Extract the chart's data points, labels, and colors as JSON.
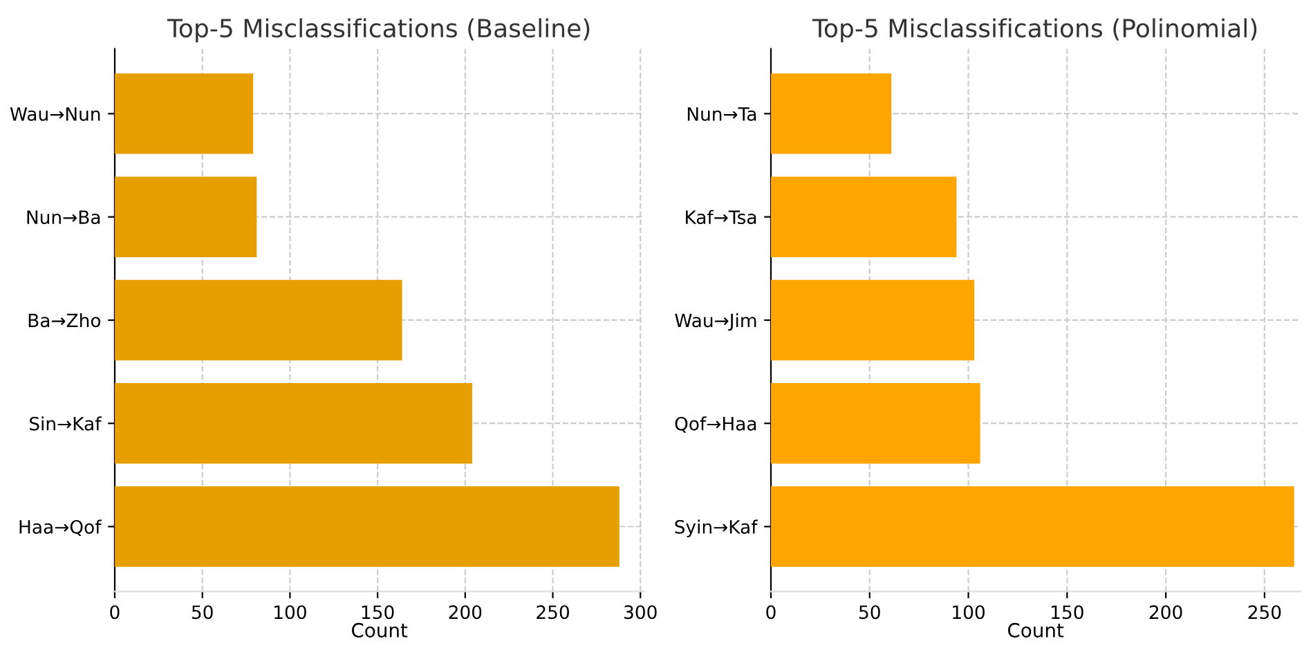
{
  "chart_data": [
    {
      "type": "bar",
      "orientation": "horizontal",
      "title": "Top-5 Misclassifications (Baseline)",
      "xlabel": "Count",
      "categories": [
        "Wau→Nun",
        "Nun→Ba",
        "Ba→Zho",
        "Sin→Kaf",
        "Haa→Qof"
      ],
      "values": [
        79,
        81,
        164,
        204,
        288
      ],
      "color": "#e69f00",
      "xlim": [
        0,
        302
      ],
      "xticks": [
        0,
        50,
        100,
        150,
        200,
        250,
        300
      ],
      "grid": true
    },
    {
      "type": "bar",
      "orientation": "horizontal",
      "title": "Top-5 Misclassifications (Polinomial)",
      "xlabel": "Count",
      "categories": [
        "Nun→Ta",
        "Kaf→Tsa",
        "Wau→Jim",
        "Qof→Haa",
        "Syin→Kaf"
      ],
      "values": [
        61,
        94,
        103,
        106,
        265
      ],
      "color": "#ffa500",
      "xlim": [
        0,
        268
      ],
      "xticks": [
        0,
        50,
        100,
        150,
        200,
        250
      ],
      "grid": true
    }
  ]
}
